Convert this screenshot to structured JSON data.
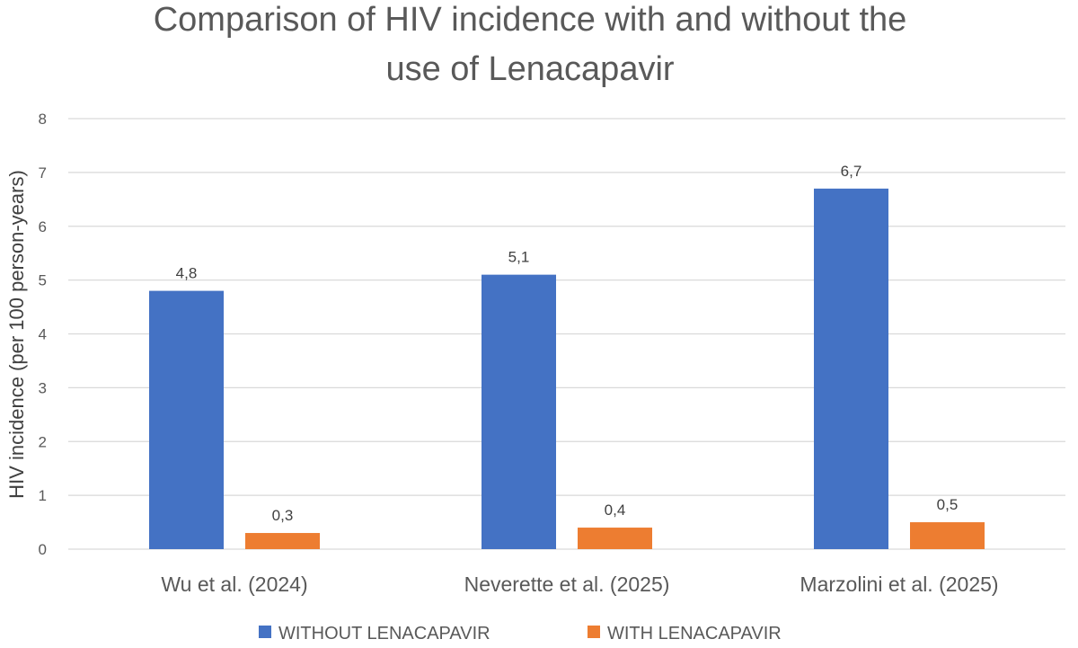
{
  "chart_data": {
    "type": "bar",
    "title_lines": [
      "Comparison of HIV incidence with and without the",
      "use of Lenacapavir"
    ],
    "xlabel": "",
    "ylabel": "HIV incidence (per 100 person-years)",
    "ylim": [
      0,
      8
    ],
    "yticks": [
      "0",
      "1",
      "2",
      "3",
      "4",
      "5",
      "6",
      "7",
      "8"
    ],
    "grid": true,
    "legend_position": "bottom",
    "categories": [
      "Wu et al. (2024)",
      "Neverette et al. (2025)",
      "Marzolini et al. (2025)"
    ],
    "series": [
      {
        "name": "WITHOUT LENACAPAVIR",
        "color": "#4472C4",
        "values": [
          4.8,
          5.1,
          6.7
        ],
        "labels": [
          "4,8",
          "5,1",
          "6,7"
        ]
      },
      {
        "name": "WITH LENACAPAVIR",
        "color": "#ED7D31",
        "values": [
          0.3,
          0.4,
          0.5
        ],
        "labels": [
          "0,3",
          "0,4",
          "0,5"
        ]
      }
    ]
  }
}
